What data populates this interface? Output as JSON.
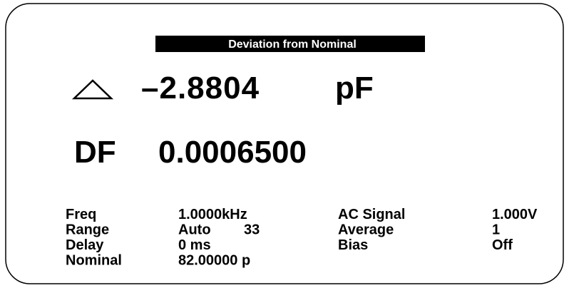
{
  "header": {
    "title": "Deviation from Nominal"
  },
  "measurement": {
    "value": "–2.8804",
    "unit": "pF"
  },
  "df": {
    "label": "DF",
    "value": "0.0006500"
  },
  "params_left": [
    {
      "label": "Freq",
      "value": "1.0000kHz"
    },
    {
      "label": "Range",
      "value": "Auto",
      "extra": "33"
    },
    {
      "label": "Delay",
      "value": "0 ms"
    },
    {
      "label": "Nominal",
      "value": "82.00000 p"
    }
  ],
  "params_right": [
    {
      "label": "AC Signal",
      "value": "1.000V"
    },
    {
      "label": "Average",
      "value": "1"
    },
    {
      "label": "Bias",
      "value": "Off"
    }
  ]
}
